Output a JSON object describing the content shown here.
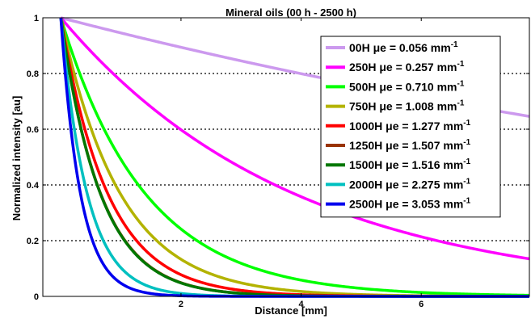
{
  "chart_data": {
    "type": "line",
    "title": "Mineral oils (00 h - 2500 h)",
    "xlabel": "Distance [mm]",
    "ylabel": "Normalized intensity [au]",
    "xlim": [
      -0.3,
      7.8
    ],
    "ylim": [
      0,
      1
    ],
    "xticks": [
      2,
      4,
      6
    ],
    "yticks": [
      0,
      0.2,
      0.4,
      0.6,
      0.8,
      1
    ],
    "ytick_labels": [
      "0",
      "0.2",
      "0.4",
      "0.6",
      "0.8",
      "1"
    ],
    "grid": "horizontal dotted",
    "legend_position": "top-right",
    "series": [
      {
        "name": "00H μe = 0.056 mm",
        "mu": 0.056,
        "color": "#cc99ee",
        "x": [
          0,
          1,
          2,
          3,
          4,
          5,
          6,
          7,
          7.8
        ],
        "y": [
          1,
          0.946,
          0.894,
          0.845,
          0.799,
          0.756,
          0.715,
          0.676,
          0.646
        ]
      },
      {
        "name": "250H μe = 0.257 mm",
        "mu": 0.257,
        "color": "#ff00ff",
        "x": [
          0,
          1,
          2,
          3,
          4,
          5,
          6,
          7,
          7.8
        ],
        "y": [
          1,
          0.773,
          0.598,
          0.463,
          0.358,
          0.277,
          0.214,
          0.166,
          0.135
        ]
      },
      {
        "name": "500H μe = 0.710 mm",
        "mu": 0.71,
        "color": "#00ff00",
        "x": [
          0,
          1,
          2,
          3,
          4,
          5,
          6,
          7,
          7.8
        ],
        "y": [
          1,
          0.492,
          0.242,
          0.119,
          0.058,
          0.029,
          0.014,
          0.007,
          0.004
        ]
      },
      {
        "name": "750H μe = 1.008 mm",
        "mu": 1.008,
        "color": "#b3b300",
        "x": [
          0,
          1,
          2,
          3,
          4,
          5,
          6,
          7,
          7.8
        ],
        "y": [
          1,
          0.365,
          0.133,
          0.049,
          0.018,
          0.006,
          0.002,
          0.001,
          0.0
        ]
      },
      {
        "name": "1000H μe = 1.277 mm",
        "mu": 1.277,
        "color": "#ff0000",
        "x": [
          0,
          1,
          2,
          3,
          4,
          5,
          6,
          7,
          7.8
        ],
        "y": [
          1,
          0.279,
          0.078,
          0.022,
          0.006,
          0.002,
          0.0,
          0.0,
          0.0
        ]
      },
      {
        "name": "1250H μe = 1.507 mm",
        "mu": 1.507,
        "color": "#993300",
        "x": [
          0,
          1,
          2,
          3,
          4,
          5,
          6,
          7,
          7.8
        ],
        "y": [
          1,
          0.222,
          0.049,
          0.011,
          0.002,
          0.001,
          0.0,
          0.0,
          0.0
        ]
      },
      {
        "name": "1500H μe = 1.516 mm",
        "mu": 1.516,
        "color": "#007700",
        "x": [
          0,
          1,
          2,
          3,
          4,
          5,
          6,
          7,
          7.8
        ],
        "y": [
          1,
          0.22,
          0.048,
          0.011,
          0.002,
          0.001,
          0.0,
          0.0,
          0.0
        ]
      },
      {
        "name": "2000H μe = 2.275 mm",
        "mu": 2.275,
        "color": "#00c0c0",
        "x": [
          0,
          1,
          2,
          3,
          4,
          5,
          6,
          7,
          7.8
        ],
        "y": [
          1,
          0.103,
          0.011,
          0.001,
          0.0,
          0.0,
          0.0,
          0.0,
          0.0
        ]
      },
      {
        "name": "2500H μe = 3.053 mm",
        "mu": 3.053,
        "color": "#0000ee",
        "x": [
          0,
          1,
          2,
          3,
          4,
          5,
          6,
          7,
          7.8
        ],
        "y": [
          1,
          0.047,
          0.002,
          0.0,
          0.0,
          0.0,
          0.0,
          0.0,
          0.0
        ]
      }
    ],
    "legend_superscript": "-1"
  }
}
